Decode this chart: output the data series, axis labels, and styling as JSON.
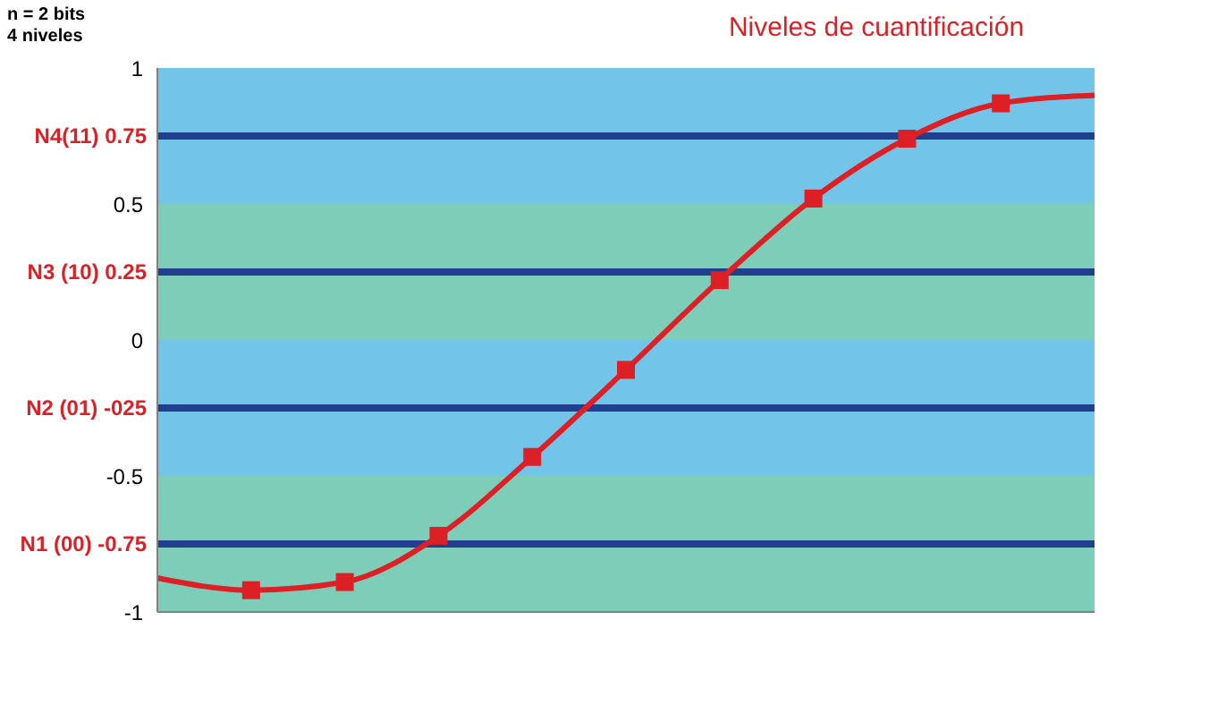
{
  "chart_data": {
    "type": "line",
    "title": "Niveles de cuantificación",
    "annotations": [
      "n = 2 bits",
      "4 niveles"
    ],
    "categories": [
      null,
      null,
      null,
      null,
      null,
      null,
      null,
      null,
      null,
      null,
      null
    ],
    "series": [
      {
        "type": "line",
        "color": "#dd2026",
        "marker": "none",
        "values": [
          -0.875,
          -0.92,
          -0.89,
          -0.72,
          -0.43,
          -0.11,
          0.22,
          0.52,
          0.74,
          0.87,
          0.9
        ]
      },
      {
        "type": "scatter",
        "color": "#dd2026",
        "marker": "square",
        "values": [
          null,
          -0.92,
          -0.89,
          -0.72,
          -0.43,
          -0.11,
          0.22,
          0.52,
          0.74,
          0.87,
          null
        ]
      }
    ],
    "ylim": [
      -1,
      1
    ],
    "yticks": [
      -1,
      -0.5,
      0,
      0.5,
      1
    ],
    "grid": false,
    "tick_labels": "y",
    "bands": [
      {
        "axis": "y",
        "from": 0.5,
        "to": 1,
        "color": "#72c4e9"
      },
      {
        "axis": "y",
        "from": 0,
        "to": 0.5,
        "color": "#7ecdb9"
      },
      {
        "axis": "y",
        "from": -0.5,
        "to": 0,
        "color": "#72c4e9"
      },
      {
        "axis": "y",
        "from": -1,
        "to": -0.5,
        "color": "#7ecdb9"
      }
    ],
    "ref_lines": [
      {
        "axis": "y",
        "value": 0.75,
        "label": "N4(11) 0.75",
        "color": "#203f8e"
      },
      {
        "axis": "y",
        "value": 0.25,
        "label": "N3 (10) 0.25",
        "color": "#203f8e"
      },
      {
        "axis": "y",
        "value": -0.25,
        "label": "N2 (01) -025",
        "color": "#203f8e"
      },
      {
        "axis": "y",
        "value": -0.75,
        "label": "N1 (00) -0.75",
        "color": "#203f8e"
      }
    ]
  }
}
